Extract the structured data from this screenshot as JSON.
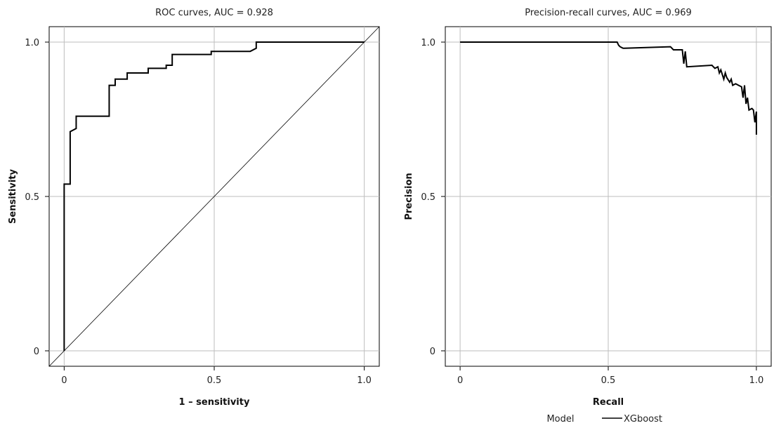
{
  "chart_data": [
    {
      "type": "line",
      "title": "ROC curves, AUC = 0.928",
      "xlabel": "1 – sensitivity",
      "ylabel": "Sensitivity",
      "xlim": [
        -0.05,
        1.05
      ],
      "ylim": [
        -0.05,
        1.05
      ],
      "xticks": [
        {
          "v": 0,
          "label": "0"
        },
        {
          "v": 0.5,
          "label": "0.5"
        },
        {
          "v": 1.0,
          "label": "1.0"
        }
      ],
      "yticks": [
        {
          "v": 0,
          "label": "0"
        },
        {
          "v": 0.5,
          "label": "0.5"
        },
        {
          "v": 1.0,
          "label": "1.0"
        }
      ],
      "grid": true,
      "reference_diagonal": true,
      "series": [
        {
          "name": "XGboost",
          "color": "#000000",
          "points": [
            [
              0.0,
              0.0
            ],
            [
              0.0,
              0.54
            ],
            [
              0.02,
              0.54
            ],
            [
              0.02,
              0.71
            ],
            [
              0.04,
              0.72
            ],
            [
              0.04,
              0.76
            ],
            [
              0.15,
              0.76
            ],
            [
              0.15,
              0.86
            ],
            [
              0.17,
              0.86
            ],
            [
              0.17,
              0.88
            ],
            [
              0.21,
              0.88
            ],
            [
              0.21,
              0.9
            ],
            [
              0.28,
              0.9
            ],
            [
              0.28,
              0.915
            ],
            [
              0.34,
              0.915
            ],
            [
              0.34,
              0.925
            ],
            [
              0.36,
              0.925
            ],
            [
              0.36,
              0.96
            ],
            [
              0.49,
              0.96
            ],
            [
              0.49,
              0.97
            ],
            [
              0.62,
              0.97
            ],
            [
              0.64,
              0.98
            ],
            [
              0.64,
              1.0
            ],
            [
              1.0,
              1.0
            ]
          ]
        }
      ]
    },
    {
      "type": "line",
      "title": "Precision-recall curves, AUC = 0.969",
      "xlabel": "Recall",
      "ylabel": "Precision",
      "xlim": [
        -0.05,
        1.05
      ],
      "ylim": [
        -0.05,
        1.05
      ],
      "xticks": [
        {
          "v": 0,
          "label": "0"
        },
        {
          "v": 0.5,
          "label": "0.5"
        },
        {
          "v": 1.0,
          "label": "1.0"
        }
      ],
      "yticks": [
        {
          "v": 0,
          "label": "0"
        },
        {
          "v": 0.5,
          "label": "0.5"
        },
        {
          "v": 1.0,
          "label": "1.0"
        }
      ],
      "grid": true,
      "legend": {
        "title": "Model",
        "entries": [
          "XGboost"
        ],
        "placement": "bottom"
      },
      "series": [
        {
          "name": "XGboost",
          "color": "#000000",
          "points": [
            [
              0.0,
              1.0
            ],
            [
              0.53,
              1.0
            ],
            [
              0.535,
              0.99
            ],
            [
              0.54,
              0.985
            ],
            [
              0.55,
              0.98
            ],
            [
              0.71,
              0.985
            ],
            [
              0.72,
              0.975
            ],
            [
              0.75,
              0.975
            ],
            [
              0.755,
              0.93
            ],
            [
              0.76,
              0.97
            ],
            [
              0.765,
              0.92
            ],
            [
              0.85,
              0.925
            ],
            [
              0.86,
              0.915
            ],
            [
              0.87,
              0.92
            ],
            [
              0.875,
              0.9
            ],
            [
              0.88,
              0.91
            ],
            [
              0.89,
              0.88
            ],
            [
              0.895,
              0.9
            ],
            [
              0.9,
              0.885
            ],
            [
              0.91,
              0.87
            ],
            [
              0.915,
              0.88
            ],
            [
              0.92,
              0.86
            ],
            [
              0.93,
              0.865
            ],
            [
              0.94,
              0.86
            ],
            [
              0.95,
              0.855
            ],
            [
              0.955,
              0.82
            ],
            [
              0.96,
              0.86
            ],
            [
              0.965,
              0.8
            ],
            [
              0.97,
              0.82
            ],
            [
              0.975,
              0.78
            ],
            [
              0.985,
              0.785
            ],
            [
              0.99,
              0.78
            ],
            [
              0.995,
              0.74
            ],
            [
              1.0,
              0.775
            ],
            [
              1.0,
              0.7
            ]
          ]
        }
      ]
    }
  ]
}
